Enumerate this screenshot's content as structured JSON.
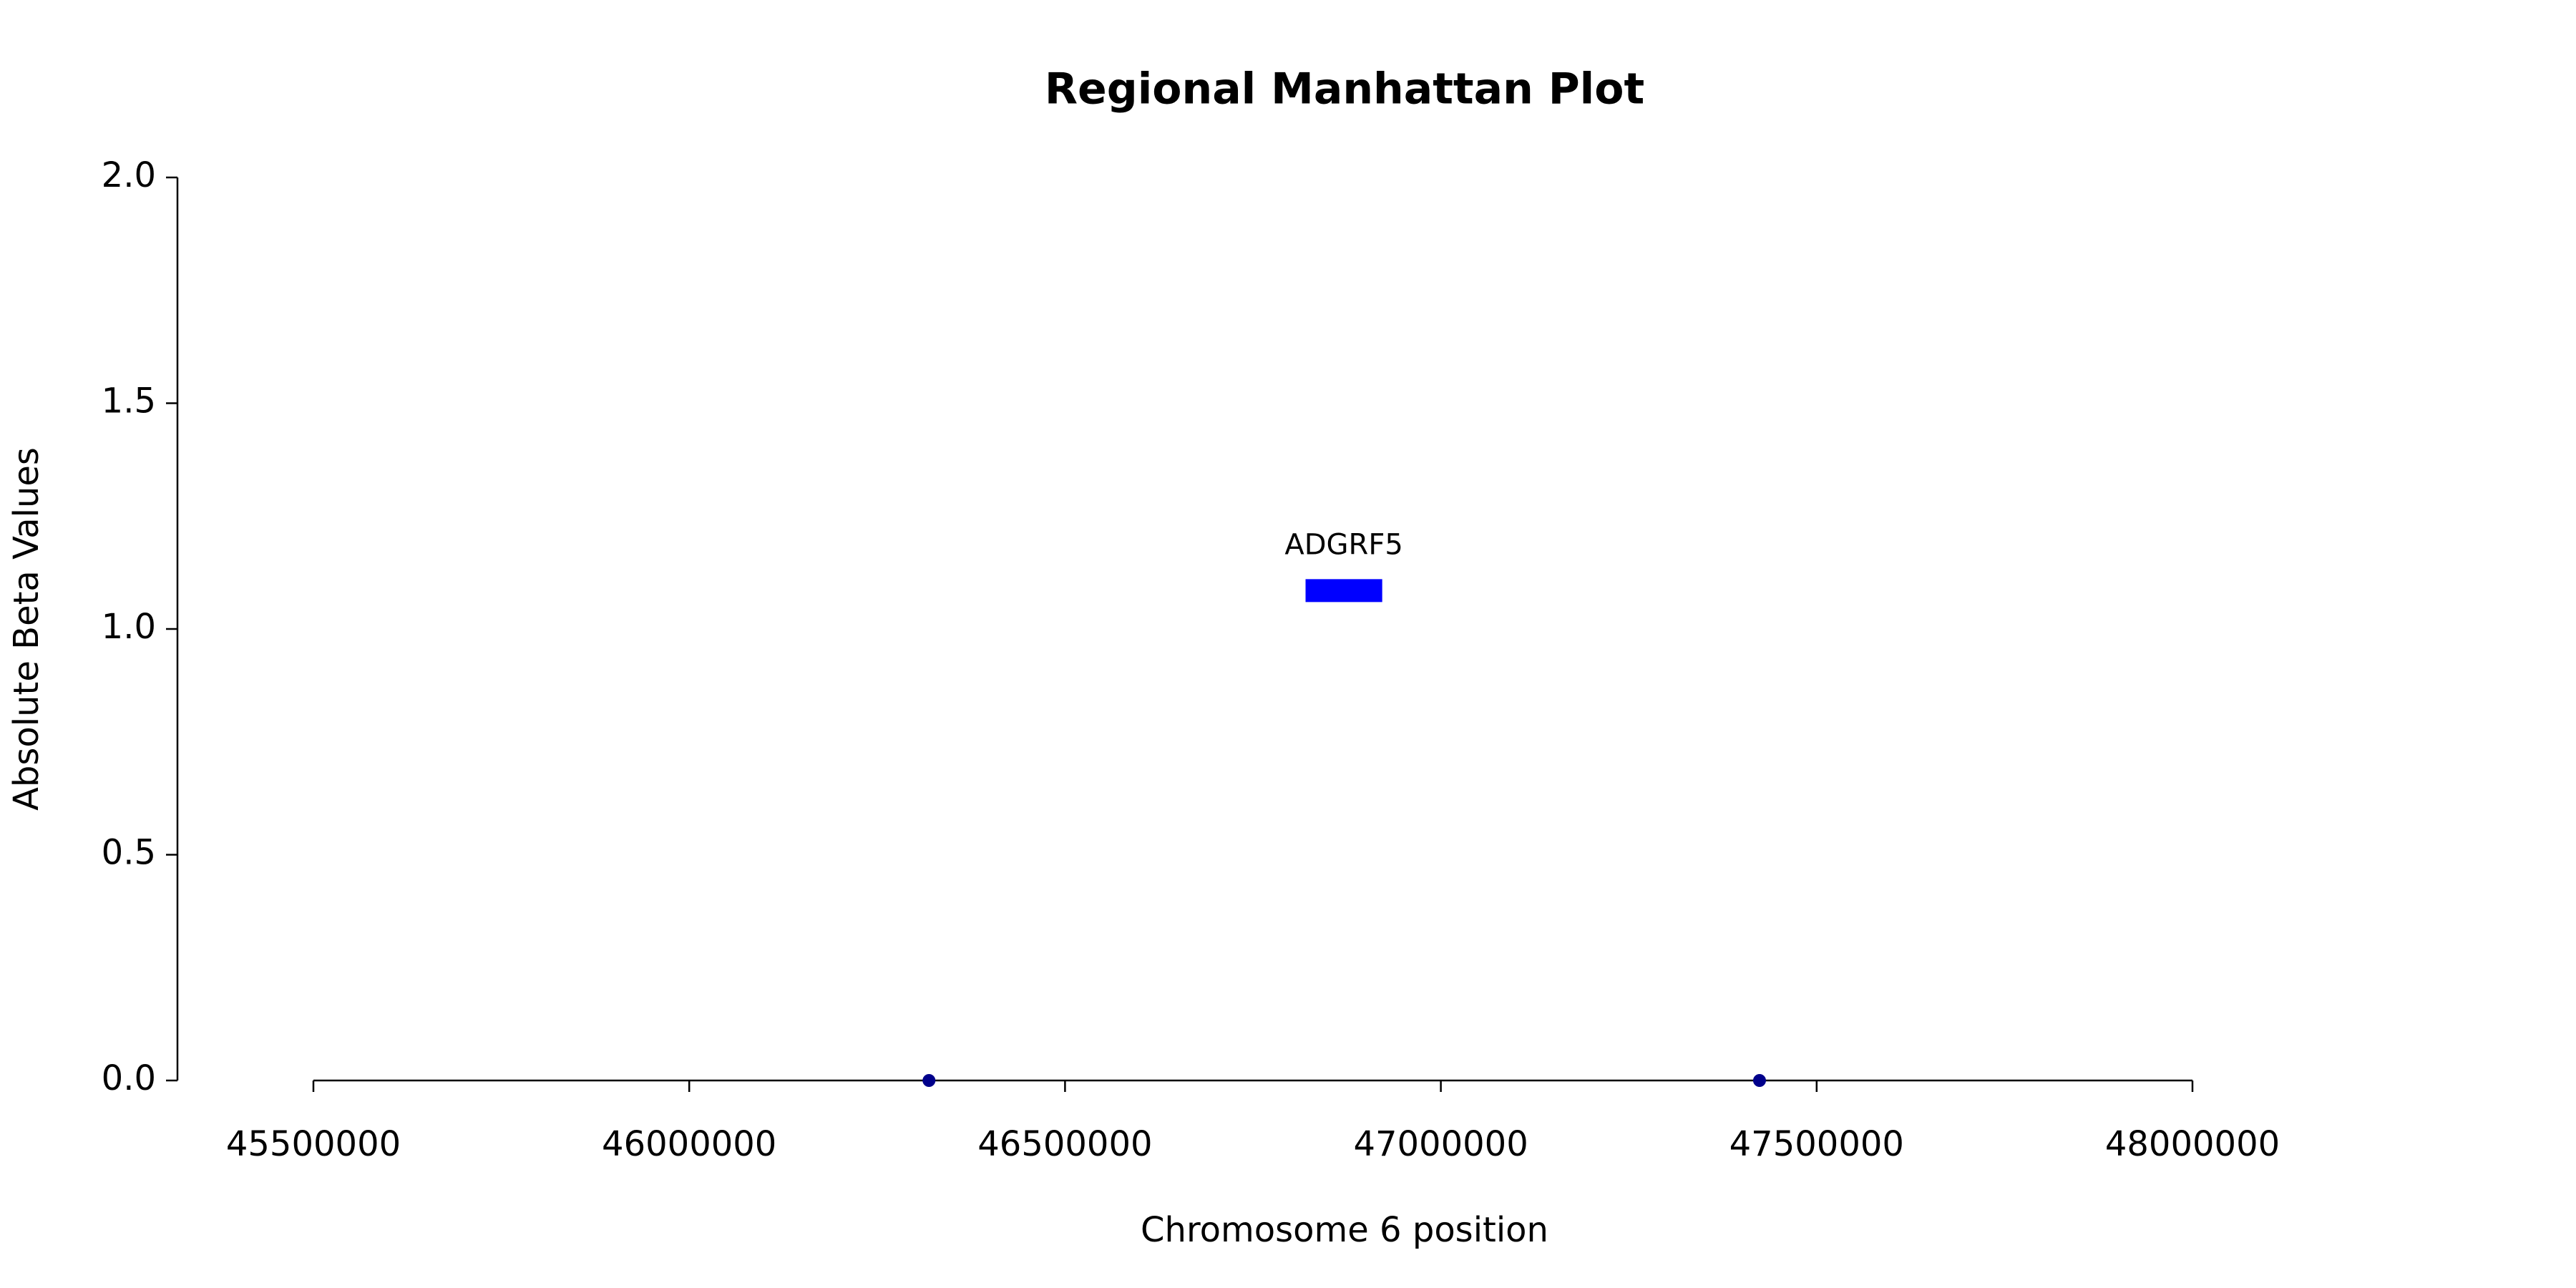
{
  "chart_data": {
    "type": "scatter",
    "title": "Regional Manhattan Plot",
    "x_label": "Chromosome 6 position",
    "y_label": "Absolute Beta Values",
    "x": [
      46319000,
      47424000
    ],
    "values": [
      0,
      0
    ],
    "color": "#00008b",
    "genes": [
      {
        "name": "ADGRF5",
        "start": 46820000,
        "end": 46922000,
        "y": 1.085,
        "color": "#0000ff"
      }
    ],
    "xlim": [
      45500000,
      48000000
    ],
    "xticks": [
      45500000,
      46000000,
      46500000,
      47000000,
      47500000,
      48000000
    ],
    "ylim": [
      0,
      2
    ],
    "yticks": [
      {
        "value": 0,
        "label": "0.0"
      },
      {
        "value": 0.5,
        "label": "0.5"
      },
      {
        "value": 1,
        "label": "1.0"
      },
      {
        "value": 1.5,
        "label": "1.5"
      },
      {
        "value": 2,
        "label": "2.0"
      }
    ]
  }
}
